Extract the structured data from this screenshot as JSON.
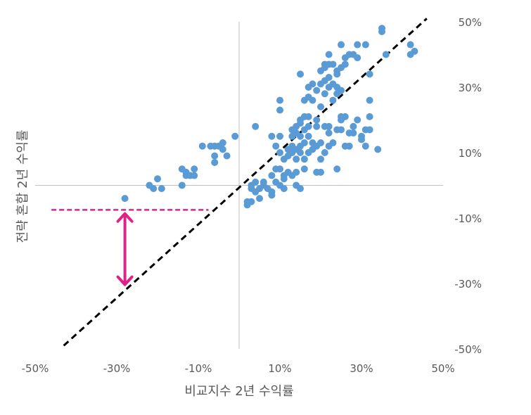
{
  "chart_data": {
    "type": "scatter",
    "xlabel": "비교지수 2년 수익률",
    "ylabel": "전략 혼합 2년 수익률",
    "xlim": [
      -50,
      50
    ],
    "ylim": [
      -50,
      50
    ],
    "x_ticks": [
      "-50%",
      "-30%",
      "-10%",
      "10%",
      "30%",
      "50%"
    ],
    "y_ticks": [
      "50%",
      "30%",
      "10%",
      "-10%",
      "-30%",
      "-50%"
    ],
    "grid": false,
    "point_color": "#5b9bd5",
    "reference_line": {
      "style": "dashed",
      "color": "#000000",
      "from": [
        -43,
        -49
      ],
      "to": [
        46,
        51
      ]
    },
    "annotation": {
      "color": "#e0218a",
      "dashed_segment": {
        "x_from": -46,
        "x_to": -7.5,
        "y": -7.5
      },
      "double_arrow": {
        "x": -28,
        "y_from": -8,
        "y_to": -31
      }
    },
    "points": [
      [
        -28,
        -4
      ],
      [
        -22,
        0
      ],
      [
        -21,
        -1
      ],
      [
        -20,
        2
      ],
      [
        -19,
        -1
      ],
      [
        -14,
        0
      ],
      [
        -14,
        5
      ],
      [
        -13,
        4
      ],
      [
        -13,
        3
      ],
      [
        -12,
        3
      ],
      [
        -11,
        3
      ],
      [
        -11,
        5
      ],
      [
        -9,
        12
      ],
      [
        -7,
        12
      ],
      [
        -6,
        12
      ],
      [
        -6,
        7
      ],
      [
        -6,
        9
      ],
      [
        -5,
        12
      ],
      [
        -4,
        13
      ],
      [
        -4,
        11
      ],
      [
        -3,
        9
      ],
      [
        -1,
        15
      ],
      [
        2,
        -5
      ],
      [
        2,
        -6
      ],
      [
        3,
        -5
      ],
      [
        3,
        -1
      ],
      [
        3,
        0
      ],
      [
        4,
        1
      ],
      [
        4,
        -2
      ],
      [
        4,
        18
      ],
      [
        5,
        -4
      ],
      [
        5,
        -1
      ],
      [
        6,
        0
      ],
      [
        6,
        1
      ],
      [
        7,
        -1
      ],
      [
        8,
        -2
      ],
      [
        8,
        -3
      ],
      [
        8,
        3
      ],
      [
        8,
        15
      ],
      [
        9,
        12
      ],
      [
        9,
        1
      ],
      [
        9,
        5
      ],
      [
        10,
        0
      ],
      [
        10,
        5
      ],
      [
        10,
        10
      ],
      [
        10,
        15
      ],
      [
        10,
        23
      ],
      [
        10,
        26
      ],
      [
        11,
        -1
      ],
      [
        11,
        2
      ],
      [
        11,
        3
      ],
      [
        11,
        8
      ],
      [
        12,
        4
      ],
      [
        12,
        9
      ],
      [
        12,
        11
      ],
      [
        13,
        3
      ],
      [
        13,
        10
      ],
      [
        13,
        12
      ],
      [
        13,
        15
      ],
      [
        13,
        17
      ],
      [
        14,
        4
      ],
      [
        14,
        8
      ],
      [
        14,
        11
      ],
      [
        14,
        16
      ],
      [
        14,
        18
      ],
      [
        14,
        0
      ],
      [
        15,
        -1
      ],
      [
        15,
        10
      ],
      [
        15,
        12
      ],
      [
        15,
        15
      ],
      [
        15,
        19
      ],
      [
        15,
        20
      ],
      [
        15,
        34
      ],
      [
        16,
        5
      ],
      [
        16,
        8
      ],
      [
        16,
        13
      ],
      [
        16,
        17
      ],
      [
        16,
        21
      ],
      [
        16,
        26
      ],
      [
        17,
        10
      ],
      [
        17,
        15
      ],
      [
        17,
        18
      ],
      [
        17,
        21
      ],
      [
        17,
        27
      ],
      [
        17,
        30
      ],
      [
        18,
        11
      ],
      [
        18,
        13
      ],
      [
        18,
        26
      ],
      [
        18,
        31
      ],
      [
        19,
        4
      ],
      [
        19,
        12
      ],
      [
        19,
        18
      ],
      [
        19,
        20
      ],
      [
        19,
        29
      ],
      [
        20,
        4
      ],
      [
        20,
        8
      ],
      [
        20,
        13
      ],
      [
        20,
        24
      ],
      [
        20,
        31
      ],
      [
        20,
        35
      ],
      [
        21,
        10
      ],
      [
        21,
        18
      ],
      [
        21,
        28
      ],
      [
        21,
        32
      ],
      [
        21,
        36
      ],
      [
        21,
        37
      ],
      [
        22,
        12
      ],
      [
        22,
        16
      ],
      [
        22,
        18
      ],
      [
        22,
        30
      ],
      [
        22,
        33
      ],
      [
        22,
        37
      ],
      [
        22,
        40
      ],
      [
        23,
        13
      ],
      [
        23,
        26
      ],
      [
        23,
        31
      ],
      [
        23,
        37
      ],
      [
        24,
        5
      ],
      [
        24,
        17
      ],
      [
        24,
        28
      ],
      [
        24,
        30
      ],
      [
        24,
        34
      ],
      [
        24,
        35
      ],
      [
        25,
        20
      ],
      [
        25,
        17
      ],
      [
        25,
        21
      ],
      [
        25,
        29
      ],
      [
        25,
        36
      ],
      [
        25,
        43
      ],
      [
        26,
        12
      ],
      [
        26,
        21
      ],
      [
        26,
        37
      ],
      [
        26,
        39
      ],
      [
        27,
        12
      ],
      [
        27,
        16
      ],
      [
        27,
        40
      ],
      [
        28,
        16
      ],
      [
        28,
        18
      ],
      [
        28,
        40
      ],
      [
        29,
        20
      ],
      [
        29,
        43
      ],
      [
        29,
        39
      ],
      [
        30,
        14
      ],
      [
        30,
        15
      ],
      [
        31,
        12
      ],
      [
        31,
        17
      ],
      [
        31,
        43
      ],
      [
        32,
        17
      ],
      [
        32,
        21
      ],
      [
        32,
        26
      ],
      [
        32,
        34
      ],
      [
        34,
        11
      ],
      [
        35,
        47
      ],
      [
        35,
        48
      ],
      [
        36,
        40
      ],
      [
        42,
        40
      ],
      [
        42,
        43
      ],
      [
        43,
        41
      ]
    ]
  }
}
